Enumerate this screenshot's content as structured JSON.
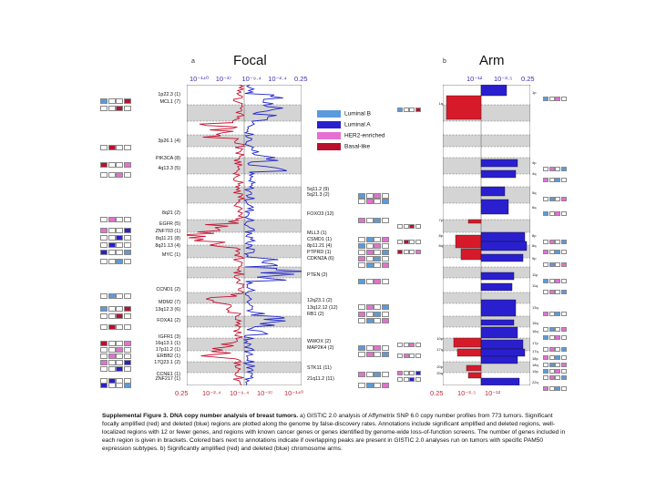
{
  "panel_a": {
    "letter": "a",
    "title": "Focal",
    "top_axis": [
      "10⁻¹⁴⁰",
      "10⁻³⁷",
      "10⁻⁹·⁴",
      "10⁻²·⁴",
      "0.25"
    ],
    "bottom_axis": [
      "0.25",
      "10⁻²·⁴",
      "10⁻⁹·⁴",
      "10⁻³⁷",
      "10⁻¹⁴⁰"
    ],
    "left_labels": [
      "1p22.3 (1)",
      "MCL1 (7)",
      "3p26.1 (4)",
      "PIK3CA (8)",
      "4q13.3 (5)",
      "8q21 (2)",
      "EGFR (5)",
      "ZNF703 (1)",
      "8q11.21 (8)",
      "8q21.13 (4)",
      "MYC (1)",
      "CCND1 (2)",
      "MDM2 (7)",
      "13q12.3 (6)",
      "FOXA1 (2)",
      "IGFR1 (3)",
      "16q13.1 (1)",
      "17p11.2 (1)",
      "ERBB2 (1)",
      "17Q23.1 (2)",
      "CCNE1 (1)",
      "ZNF217 (1)"
    ],
    "right_labels": [
      "5q11.2 (9)",
      "5q21.3 (2)",
      "FOXO3 (12)",
      "MLL3 (1)",
      "CSMD1 (1)",
      "8p11.21 (4)",
      "PTPRD (1)",
      "CDKN2A (6)",
      "PTEN (2)",
      "12q23.1 (2)",
      "13q12.12 (12)",
      "RB1 (2)",
      "WWOX (2)",
      "MAP2K4 (2)",
      "STK11 (11)",
      "21q11.2 (11)"
    ]
  },
  "legend": [
    {
      "label": "Luminal B",
      "color": "#5b9bdc"
    },
    {
      "label": "Luminal A",
      "color": "#2a1fcf"
    },
    {
      "label": "HER2-enriched",
      "color": "#e66fd2"
    },
    {
      "label": "Basal-like",
      "color": "#b8102e"
    }
  ],
  "panel_b": {
    "letter": "b",
    "title": "Arm",
    "top_axis": [
      "10⁻¹²",
      "10⁻³·⁵",
      "0.25"
    ],
    "bottom_axis": [
      "0.25",
      "10⁻³·⁵",
      "10⁻¹²"
    ],
    "left_labels": [
      "1q",
      "7p",
      "8p",
      "8q",
      "10p",
      "17q",
      "20p",
      "20q"
    ],
    "right_labels": [
      "1p",
      "4p",
      "4q",
      "5q",
      "6q",
      "8p",
      "8q",
      "9p",
      "11p",
      "11q",
      "13q",
      "15q",
      "16q",
      "17p",
      "17q",
      "18p",
      "18q",
      "19p",
      "22q"
    ]
  },
  "caption": {
    "heading": "Supplemental Figure 3. DNA copy number analysis of breast tumors.",
    "body": " a) GISTIC 2.0 analysis of Affymetrix SNP 6.0 copy number profiles from 773 tumors. Significant focally amplified (red) and deleted (blue) regions are plotted along the genome by false-discovery rates. Annotations include significant amplified and deleted regions, well-localized regions with 12 or fewer genes, and regions with known cancer genes or genes identified by genome-wide loss-of-function screens. The number of genes included in each region is given in brackets. Colored bars next to annotations indicate if overlapping peaks are present in GISTIC 2.0 analyses run on tumors with specific PAM50 expression subtypes. b) Significantly amplified (red) and deleted (blue) chromosome arms."
  }
}
